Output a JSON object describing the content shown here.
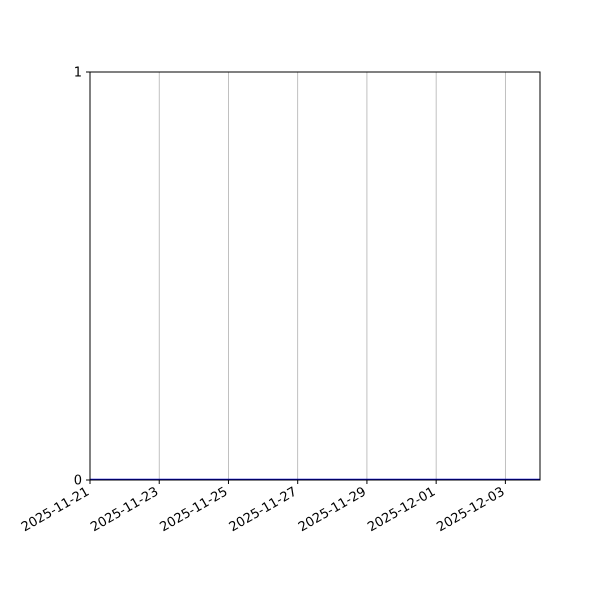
{
  "chart_data": {
    "type": "line",
    "title": "",
    "xlabel": "",
    "ylabel": "",
    "x": [
      "2025-11-21",
      "2025-11-22",
      "2025-11-23",
      "2025-11-24",
      "2025-11-25",
      "2025-11-26",
      "2025-11-27",
      "2025-11-28",
      "2025-11-29",
      "2025-11-30",
      "2025-12-01",
      "2025-12-02",
      "2025-12-03",
      "2025-12-04"
    ],
    "series": [
      {
        "values": [
          0,
          0,
          0,
          0,
          0,
          0,
          0,
          0,
          0,
          0,
          0,
          0,
          0,
          0
        ],
        "color": "#0000cc"
      }
    ],
    "xlim": [
      "2025-11-21",
      "2025-12-04"
    ],
    "ylim": [
      0,
      1
    ],
    "x_ticks": [
      "2025-11-21",
      "2025-11-23",
      "2025-11-25",
      "2025-11-27",
      "2025-11-29",
      "2025-12-01",
      "2025-12-03"
    ],
    "y_ticks": [
      "0",
      "1"
    ],
    "grid": "vertical"
  }
}
